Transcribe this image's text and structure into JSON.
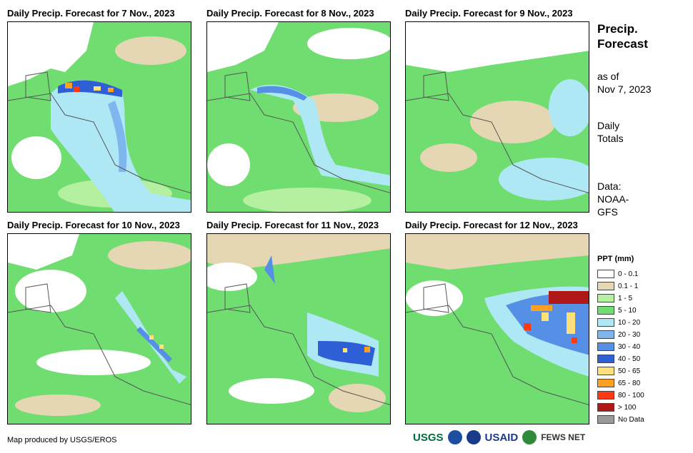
{
  "panels": [
    {
      "title": "Daily Precip. Forecast for 7 Nov., 2023"
    },
    {
      "title": "Daily Precip. Forecast for 8 Nov., 2023"
    },
    {
      "title": "Daily Precip. Forecast for 9 Nov., 2023"
    },
    {
      "title": "Daily Precip. Forecast for 10 Nov., 2023"
    },
    {
      "title": "Daily Precip. Forecast for 11 Nov., 2023"
    },
    {
      "title": "Daily Precip. Forecast for 12 Nov., 2023"
    }
  ],
  "side": {
    "title_line1": "Precip.",
    "title_line2": "Forecast",
    "asof_line1": "as of",
    "asof_line2": "Nov 7, 2023",
    "daily_line1": "Daily",
    "daily_line2": "Totals",
    "data_line1": "Data:",
    "data_line2": "NOAA-",
    "data_line3": "GFS"
  },
  "legend": {
    "title": "PPT (mm)",
    "items": [
      {
        "label": "0 - 0.1",
        "color": "#ffffff"
      },
      {
        "label": "0.1 - 1",
        "color": "#e6d7b4"
      },
      {
        "label": "1 - 5",
        "color": "#b4f0a0"
      },
      {
        "label": "5 - 10",
        "color": "#6fdd6f"
      },
      {
        "label": "10 - 20",
        "color": "#aee8f5"
      },
      {
        "label": "20 - 30",
        "color": "#7fb6ee"
      },
      {
        "label": "30 - 40",
        "color": "#5590e6"
      },
      {
        "label": "40 - 50",
        "color": "#2f5fd6"
      },
      {
        "label": "50 - 65",
        "color": "#ffe07a"
      },
      {
        "label": "65 - 80",
        "color": "#ffa020"
      },
      {
        "label": "80 - 100",
        "color": "#ff3a10"
      },
      {
        "label": "> 100",
        "color": "#b01818"
      },
      {
        "label": "No Data",
        "color": "#999999"
      }
    ]
  },
  "credit": "Map produced by USGS/EROS",
  "logos": [
    "USGS",
    "USAID",
    "FEWS NET"
  ]
}
